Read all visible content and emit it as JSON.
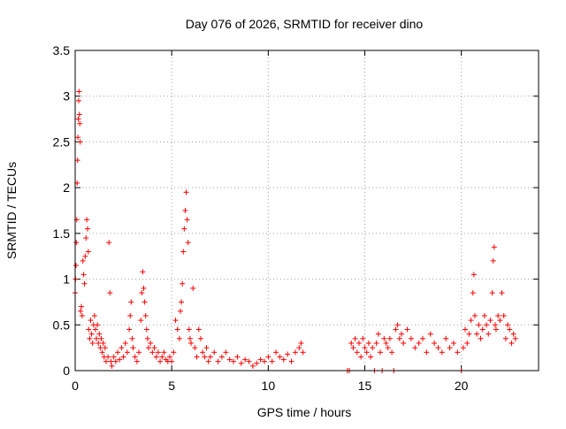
{
  "chart_data": {
    "type": "scatter",
    "title": "Day 076 of 2026, SRMTID for receiver dino",
    "xlabel": "GPS time / hours",
    "ylabel": "SRMTID / TECUs",
    "xlim": [
      0,
      24
    ],
    "ylim": [
      0,
      3.5
    ],
    "xticks": [
      0,
      5,
      10,
      15,
      20
    ],
    "xtick_labels": [
      "0",
      "5",
      "10",
      "15",
      "20"
    ],
    "yticks": [
      0,
      0.5,
      1,
      1.5,
      2,
      2.5,
      3,
      3.5
    ],
    "ytick_labels": [
      "0",
      "0.5",
      "1",
      "1.5",
      "2",
      "2.5",
      "3",
      "3.5"
    ],
    "grid": true,
    "marker": "+",
    "series": [
      {
        "name": "SRMTID",
        "color": "#ff0000",
        "points": [
          [
            0.0,
            0.85
          ],
          [
            0.02,
            1.0
          ],
          [
            0.04,
            1.15
          ],
          [
            0.06,
            1.4
          ],
          [
            0.08,
            1.65
          ],
          [
            0.1,
            2.05
          ],
          [
            0.12,
            2.3
          ],
          [
            0.14,
            2.55
          ],
          [
            0.16,
            2.75
          ],
          [
            0.18,
            2.95
          ],
          [
            0.2,
            3.05
          ],
          [
            0.22,
            2.8
          ],
          [
            0.24,
            2.7
          ],
          [
            0.26,
            2.5
          ],
          [
            0.28,
            0.65
          ],
          [
            0.32,
            0.7
          ],
          [
            0.36,
            0.6
          ],
          [
            0.4,
            1.2
          ],
          [
            0.44,
            1.05
          ],
          [
            0.48,
            0.95
          ],
          [
            0.52,
            1.25
          ],
          [
            0.56,
            1.45
          ],
          [
            0.6,
            1.65
          ],
          [
            0.64,
            1.55
          ],
          [
            0.68,
            1.3
          ],
          [
            0.7,
            0.45
          ],
          [
            0.75,
            0.35
          ],
          [
            0.8,
            0.55
          ],
          [
            0.85,
            0.4
          ],
          [
            0.9,
            0.3
          ],
          [
            0.95,
            0.5
          ],
          [
            1.0,
            0.6
          ],
          [
            1.05,
            0.45
          ],
          [
            1.1,
            0.35
          ],
          [
            1.15,
            0.5
          ],
          [
            1.2,
            0.3
          ],
          [
            1.25,
            0.4
          ],
          [
            1.3,
            0.25
          ],
          [
            1.35,
            0.35
          ],
          [
            1.4,
            0.2
          ],
          [
            1.45,
            0.3
          ],
          [
            1.5,
            0.15
          ],
          [
            1.55,
            0.25
          ],
          [
            1.6,
            0.1
          ],
          [
            1.7,
            0.15
          ],
          [
            1.75,
            1.4
          ],
          [
            1.8,
            0.85
          ],
          [
            1.85,
            0.1
          ],
          [
            1.9,
            0.05
          ],
          [
            2.0,
            0.15
          ],
          [
            2.1,
            0.1
          ],
          [
            2.2,
            0.2
          ],
          [
            2.3,
            0.12
          ],
          [
            2.4,
            0.25
          ],
          [
            2.5,
            0.15
          ],
          [
            2.6,
            0.3
          ],
          [
            2.7,
            0.2
          ],
          [
            2.8,
            0.45
          ],
          [
            2.85,
            0.6
          ],
          [
            2.9,
            0.75
          ],
          [
            2.95,
            0.35
          ],
          [
            3.0,
            0.25
          ],
          [
            3.1,
            0.15
          ],
          [
            3.2,
            0.1
          ],
          [
            3.3,
            0.2
          ],
          [
            3.4,
            0.55
          ],
          [
            3.45,
            0.85
          ],
          [
            3.5,
            1.08
          ],
          [
            3.55,
            0.9
          ],
          [
            3.6,
            0.75
          ],
          [
            3.65,
            0.6
          ],
          [
            3.7,
            0.45
          ],
          [
            3.75,
            0.35
          ],
          [
            3.8,
            0.25
          ],
          [
            3.9,
            0.3
          ],
          [
            4.0,
            0.2
          ],
          [
            4.1,
            0.25
          ],
          [
            4.2,
            0.15
          ],
          [
            4.3,
            0.2
          ],
          [
            4.4,
            0.1
          ],
          [
            4.5,
            0.15
          ],
          [
            4.6,
            0.2
          ],
          [
            4.7,
            0.12
          ],
          [
            4.8,
            0.1
          ],
          [
            4.9,
            0.15
          ],
          [
            5.0,
            0.1
          ],
          [
            5.1,
            0.2
          ],
          [
            5.2,
            0.55
          ],
          [
            5.3,
            0.45
          ],
          [
            5.4,
            0.35
          ],
          [
            5.45,
            0.65
          ],
          [
            5.5,
            0.75
          ],
          [
            5.55,
            0.95
          ],
          [
            5.6,
            1.3
          ],
          [
            5.65,
            1.55
          ],
          [
            5.7,
            1.75
          ],
          [
            5.75,
            1.95
          ],
          [
            5.8,
            1.65
          ],
          [
            5.85,
            1.4
          ],
          [
            5.9,
            0.45
          ],
          [
            5.95,
            0.35
          ],
          [
            6.0,
            0.3
          ],
          [
            6.1,
            0.9
          ],
          [
            6.2,
            0.25
          ],
          [
            6.3,
            0.15
          ],
          [
            6.4,
            0.45
          ],
          [
            6.5,
            0.35
          ],
          [
            6.6,
            0.2
          ],
          [
            6.7,
            0.15
          ],
          [
            6.8,
            0.25
          ],
          [
            6.9,
            0.1
          ],
          [
            7.0,
            0.15
          ],
          [
            7.2,
            0.2
          ],
          [
            7.4,
            0.1
          ],
          [
            7.6,
            0.15
          ],
          [
            7.8,
            0.2
          ],
          [
            8.0,
            0.12
          ],
          [
            8.2,
            0.1
          ],
          [
            8.4,
            0.15
          ],
          [
            8.6,
            0.08
          ],
          [
            8.8,
            0.12
          ],
          [
            9.0,
            0.1
          ],
          [
            9.2,
            0.05
          ],
          [
            9.4,
            0.08
          ],
          [
            9.6,
            0.12
          ],
          [
            9.8,
            0.1
          ],
          [
            10.0,
            0.15
          ],
          [
            10.2,
            0.1
          ],
          [
            10.4,
            0.2
          ],
          [
            10.6,
            0.15
          ],
          [
            10.8,
            0.12
          ],
          [
            11.0,
            0.18
          ],
          [
            11.2,
            0.1
          ],
          [
            11.4,
            0.2
          ],
          [
            11.6,
            0.25
          ],
          [
            11.7,
            0.3
          ],
          [
            11.8,
            0.2
          ],
          [
            14.1,
            0.0
          ],
          [
            14.2,
            0.0
          ],
          [
            14.3,
            0.3
          ],
          [
            14.4,
            0.25
          ],
          [
            14.5,
            0.35
          ],
          [
            14.6,
            0.2
          ],
          [
            14.7,
            0.3
          ],
          [
            14.8,
            0.15
          ],
          [
            14.9,
            0.35
          ],
          [
            15.0,
            0.25
          ],
          [
            15.1,
            0.2
          ],
          [
            15.2,
            0.3
          ],
          [
            15.3,
            0.15
          ],
          [
            15.4,
            0.25
          ],
          [
            15.5,
            0.0
          ],
          [
            15.6,
            0.3
          ],
          [
            15.7,
            0.4
          ],
          [
            15.8,
            0.2
          ],
          [
            15.9,
            0.0
          ],
          [
            16.0,
            0.35
          ],
          [
            16.1,
            0.3
          ],
          [
            16.2,
            0.25
          ],
          [
            16.3,
            0.35
          ],
          [
            16.4,
            0.2
          ],
          [
            16.5,
            0.0
          ],
          [
            16.6,
            0.45
          ],
          [
            16.7,
            0.5
          ],
          [
            16.8,
            0.35
          ],
          [
            16.9,
            0.4
          ],
          [
            17.0,
            0.3
          ],
          [
            17.2,
            0.45
          ],
          [
            17.4,
            0.35
          ],
          [
            17.6,
            0.25
          ],
          [
            17.8,
            0.3
          ],
          [
            18.0,
            0.35
          ],
          [
            18.2,
            0.2
          ],
          [
            18.4,
            0.4
          ],
          [
            18.6,
            0.3
          ],
          [
            18.8,
            0.25
          ],
          [
            19.0,
            0.2
          ],
          [
            19.2,
            0.35
          ],
          [
            19.4,
            0.25
          ],
          [
            19.6,
            0.3
          ],
          [
            19.8,
            0.2
          ],
          [
            20.0,
            0.0
          ],
          [
            20.1,
            0.25
          ],
          [
            20.2,
            0.45
          ],
          [
            20.3,
            0.3
          ],
          [
            20.4,
            0.4
          ],
          [
            20.5,
            0.55
          ],
          [
            20.6,
            0.85
          ],
          [
            20.65,
            1.05
          ],
          [
            20.7,
            0.6
          ],
          [
            20.8,
            0.4
          ],
          [
            20.9,
            0.5
          ],
          [
            21.0,
            0.35
          ],
          [
            21.1,
            0.45
          ],
          [
            21.2,
            0.6
          ],
          [
            21.3,
            0.5
          ],
          [
            21.4,
            0.4
          ],
          [
            21.5,
            0.55
          ],
          [
            21.6,
            0.85
          ],
          [
            21.65,
            1.2
          ],
          [
            21.7,
            1.35
          ],
          [
            21.75,
            0.5
          ],
          [
            21.8,
            0.45
          ],
          [
            21.9,
            0.6
          ],
          [
            22.0,
            0.55
          ],
          [
            22.1,
            0.85
          ],
          [
            22.2,
            0.6
          ],
          [
            22.3,
            0.35
          ],
          [
            22.4,
            0.5
          ],
          [
            22.5,
            0.45
          ],
          [
            22.6,
            0.3
          ],
          [
            22.7,
            0.4
          ],
          [
            22.8,
            0.35
          ]
        ]
      }
    ]
  }
}
